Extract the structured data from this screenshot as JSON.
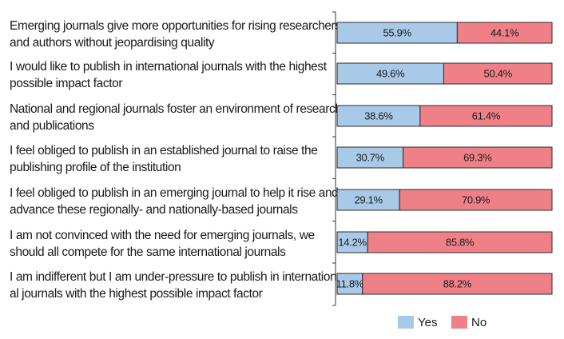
{
  "chart_data": {
    "type": "bar",
    "stacked": true,
    "orientation": "horizontal",
    "categories": [
      [
        "Emerging journals give more opportunities for rising researchers",
        "and authors without jeopardising quality"
      ],
      [
        "I would like to publish in international journals with the highest",
        "possible impact factor"
      ],
      [
        "National and regional journals foster an environment of research",
        "and publications"
      ],
      [
        "I feel obliged to publish in an established journal to raise the",
        "publishing profile of the institution"
      ],
      [
        "I feel obliged to publish in an emerging journal to help it rise and",
        "advance these regionally- and nationally-based journals"
      ],
      [
        "I am not convinced with the need for emerging journals, we",
        "should all compete for the same international journals"
      ],
      [
        "I am indifferent but I am under-pressure to publish in internation-",
        "al journals with the highest possible impact factor"
      ]
    ],
    "series": [
      {
        "name": "Yes",
        "color": "#a9c9e8",
        "values": [
          55.9,
          49.6,
          38.6,
          30.7,
          29.1,
          14.2,
          11.8
        ],
        "labels": [
          "55.9%",
          "49.6%",
          "38.6%",
          "30.7%",
          "29.1%",
          "14.2%",
          "11.8%"
        ]
      },
      {
        "name": "No",
        "color": "#f08088",
        "values": [
          44.1,
          50.4,
          61.4,
          69.3,
          70.9,
          85.8,
          88.2
        ],
        "labels": [
          "44.1%",
          "50.4%",
          "61.4%",
          "69.3%",
          "70.9%",
          "85.8%",
          "88.2%"
        ]
      }
    ],
    "xlim": [
      0,
      100
    ],
    "legend_position": "bottom",
    "grid": false
  }
}
